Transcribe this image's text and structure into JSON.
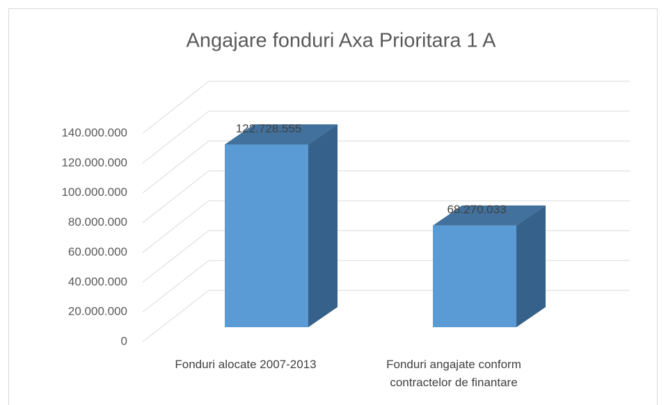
{
  "chart_data": {
    "type": "bar3d",
    "title": "Angajare fonduri Axa Prioritara 1 A",
    "categories": [
      "Fonduri alocate 2007-2013",
      "Fonduri angajate conform contractelor de finantare"
    ],
    "values": [
      122728555,
      68270033
    ],
    "value_labels": [
      "122.728.555",
      "68.270.033"
    ],
    "colors": {
      "front": "#5b9bd5",
      "side": "#35618a",
      "top": "#41719c"
    },
    "ylim": [
      0,
      140000000
    ],
    "yticks": [
      0,
      {
        "value": 20000000,
        "label": "20.000.000"
      },
      {
        "value": 40000000,
        "label": "40.000.000"
      },
      {
        "value": 60000000,
        "label": "60.000.000"
      },
      {
        "value": 80000000,
        "label": "80.000.000"
      },
      {
        "value": 100000000,
        "label": "100.000.000"
      },
      {
        "value": 120000000,
        "label": "120.000.000"
      },
      {
        "value": 140000000,
        "label": "140.000.000"
      }
    ],
    "grid": true
  }
}
